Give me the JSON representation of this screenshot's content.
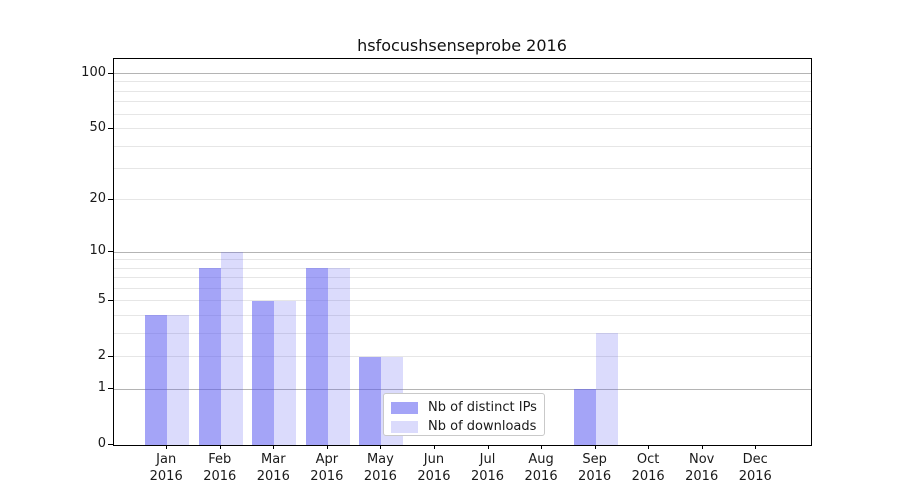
{
  "title": "hsfocushsenseprobe 2016",
  "chart_data": {
    "type": "bar",
    "title": "hsfocushsenseprobe 2016",
    "categories": [
      "Jan 2016",
      "Feb 2016",
      "Mar 2016",
      "Apr 2016",
      "May 2016",
      "Jun 2016",
      "Jul 2016",
      "Aug 2016",
      "Sep 2016",
      "Oct 2016",
      "Nov 2016",
      "Dec 2016"
    ],
    "x_tick_months": [
      "Jan",
      "Feb",
      "Mar",
      "Apr",
      "May",
      "Jun",
      "Jul",
      "Aug",
      "Sep",
      "Oct",
      "Nov",
      "Dec"
    ],
    "x_tick_year": "2016",
    "series": [
      {
        "name": "Nb of distinct IPs",
        "color": "rgba(90,90,240,0.55)",
        "values": [
          4,
          8,
          5,
          8,
          2,
          0,
          0,
          0,
          1,
          0,
          0,
          0
        ]
      },
      {
        "name": "Nb of downloads",
        "color": "rgba(90,90,240,0.22)",
        "values": [
          4,
          10,
          5,
          8,
          2,
          0,
          0,
          0,
          3,
          0,
          0,
          0
        ]
      }
    ],
    "xlabel": "",
    "ylabel": "",
    "y_scale": "log10(value+1)",
    "ylim": [
      0,
      120
    ],
    "y_ticks_labeled": [
      0,
      1,
      2,
      5,
      10,
      20,
      50,
      100
    ],
    "y_major_gridlines": [
      1,
      10,
      100
    ],
    "y_minor_gridlines": [
      3,
      4,
      6,
      7,
      8,
      9,
      30,
      40,
      60,
      70,
      80,
      90
    ],
    "grid": true,
    "legend_position": "lower center"
  },
  "legend": {
    "items": [
      {
        "label": "Nb of distinct IPs",
        "swatch_color": "rgba(90,90,240,0.55)"
      },
      {
        "label": "Nb of downloads",
        "swatch_color": "rgba(90,90,240,0.22)"
      }
    ]
  },
  "colors": {
    "bar_base": "#5a5af0",
    "grid_major": "#b4b4b4",
    "grid_minor": "#e6e6e6",
    "axis_line": "#000000",
    "text": "#1a1a1a",
    "background": "#ffffff"
  }
}
